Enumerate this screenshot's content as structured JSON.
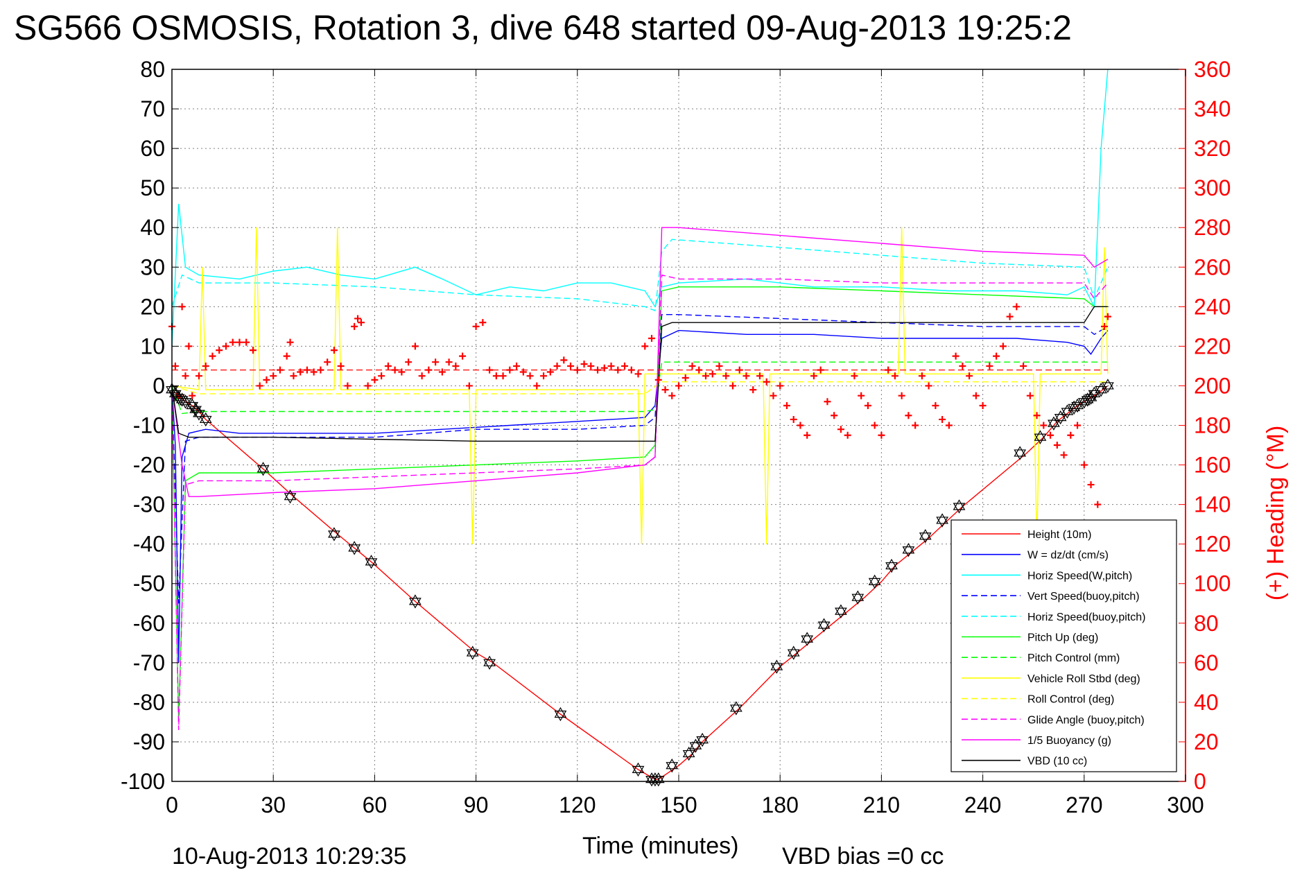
{
  "chart_data": {
    "type": "line",
    "title": "SG566 OSMOSIS, Rotation 3, dive 648 started 09-Aug-2013 19:25:2",
    "xlabel": "Time (minutes)",
    "ylabel_right": "(+) Heading (°M)",
    "footer_left": "10-Aug-2013 10:29:35",
    "footer_right": "VBD bias =0 cc",
    "xlim": [
      0,
      300
    ],
    "ylim": [
      -100,
      80
    ],
    "ylim_right": [
      0,
      360
    ],
    "x_ticks": [
      0,
      30,
      60,
      90,
      120,
      150,
      180,
      210,
      240,
      270,
      300
    ],
    "y_ticks": [
      -100,
      -90,
      -80,
      -70,
      -60,
      -50,
      -40,
      -30,
      -20,
      -10,
      0,
      10,
      20,
      30,
      40,
      50,
      60,
      70,
      80
    ],
    "y_ticks_right": [
      0,
      20,
      40,
      60,
      80,
      100,
      120,
      140,
      160,
      180,
      200,
      220,
      240,
      260,
      280,
      300,
      320,
      340,
      360
    ],
    "grid": true,
    "legend_position": "bottom-right",
    "series": [
      {
        "name": "Height (10m)",
        "color": "#ff0000",
        "style": "solid",
        "x": [
          0,
          2,
          4,
          6,
          8,
          10,
          27,
          36,
          49,
          54,
          59,
          72,
          90,
          95,
          115,
          138,
          143,
          144,
          150,
          154,
          157,
          168,
          180,
          185,
          190,
          195,
          200,
          205,
          210,
          214,
          219,
          224,
          229,
          234,
          253,
          258,
          262,
          265,
          268,
          271,
          274,
          277
        ],
        "y": [
          -1,
          -2.5,
          -4,
          -5,
          -6.5,
          -8.5,
          -21,
          -28,
          -37.5,
          -41,
          -44.5,
          -54.5,
          -67.5,
          -70,
          -83,
          -97,
          -99.5,
          -99.5,
          -96,
          -93,
          -90,
          -81.5,
          -71,
          -67.5,
          -64,
          -60.5,
          -57,
          -53.5,
          -49.5,
          -45.5,
          -42,
          -38.5,
          -34.5,
          -30.5,
          -17,
          -13,
          -9,
          -7,
          -5,
          -3.5,
          -2,
          0
        ]
      },
      {
        "name": "W = dz/dt (cm/s)",
        "color": "#0000ff",
        "style": "solid",
        "x": [
          0,
          1,
          2,
          3,
          5,
          10,
          20,
          40,
          60,
          80,
          100,
          120,
          140,
          143,
          145,
          150,
          170,
          190,
          210,
          230,
          250,
          265,
          270,
          272,
          275,
          277
        ],
        "y": [
          0,
          -15,
          -70,
          -18,
          -12,
          -11,
          -12,
          -12,
          -12,
          -11,
          -10,
          -9,
          -8,
          -5,
          12,
          14,
          13,
          13,
          12,
          12,
          12,
          11,
          10,
          8,
          12,
          14
        ]
      },
      {
        "name": "Horiz Speed(W,pitch)",
        "color": "#00ffff",
        "style": "solid",
        "x": [
          0,
          2,
          4,
          8,
          20,
          30,
          40,
          50,
          60,
          72,
          80,
          90,
          100,
          110,
          120,
          130,
          140,
          143,
          145,
          150,
          170,
          190,
          210,
          230,
          250,
          265,
          270,
          273,
          275,
          277
        ],
        "y": [
          10,
          46,
          30,
          28,
          27,
          29,
          30,
          28,
          27,
          30,
          27,
          23,
          25,
          24,
          26,
          26,
          24,
          20,
          25,
          26,
          27,
          25,
          25,
          24,
          24,
          23,
          25,
          20,
          60,
          80
        ]
      },
      {
        "name": "Vert Speed(buoy,pitch)",
        "color": "#0000ff",
        "style": "dashed",
        "x": [
          0,
          2,
          4,
          8,
          30,
          60,
          90,
          120,
          140,
          143,
          145,
          150,
          180,
          210,
          240,
          270,
          273,
          277
        ],
        "y": [
          0,
          -55,
          -14,
          -13,
          -13,
          -13,
          -11,
          -11,
          -10,
          -8,
          18,
          18,
          17,
          16,
          15,
          15,
          13,
          15
        ]
      },
      {
        "name": "Horiz Speed(buoy,pitch)",
        "color": "#00ffff",
        "style": "dashed",
        "x": [
          0,
          3,
          8,
          30,
          60,
          90,
          120,
          140,
          143,
          145,
          148,
          180,
          210,
          240,
          270,
          273,
          277
        ],
        "y": [
          20,
          28,
          26,
          26,
          25,
          23,
          22,
          20,
          19,
          34,
          37,
          35,
          33,
          31,
          30,
          22,
          30
        ]
      },
      {
        "name": "Pitch Up (deg)",
        "color": "#00ff00",
        "style": "solid",
        "x": [
          0,
          2,
          4,
          8,
          30,
          60,
          90,
          120,
          140,
          143,
          145,
          150,
          180,
          210,
          240,
          270,
          273,
          277
        ],
        "y": [
          0,
          -85,
          -24,
          -22,
          -22,
          -21,
          -20,
          -19,
          -18,
          -15,
          24,
          25,
          25,
          24,
          23,
          22,
          20,
          20
        ]
      },
      {
        "name": "Pitch Control (mm)",
        "color": "#00ff00",
        "style": "dashed",
        "x": [
          0,
          3,
          8,
          60,
          90,
          140,
          143,
          145,
          180,
          270,
          277
        ],
        "y": [
          0,
          -7,
          -6.5,
          -6.5,
          -6.5,
          -6.5,
          -6,
          6,
          6,
          6,
          6
        ]
      },
      {
        "name": "Vehicle Roll Stbd (deg)",
        "color": "#ffff00",
        "style": "solid",
        "x": [
          0,
          8,
          9,
          10,
          24,
          25,
          26,
          48,
          49,
          50,
          88,
          89,
          90,
          138,
          139,
          140,
          175,
          176,
          177,
          215,
          216,
          217,
          255,
          256,
          257,
          275,
          276,
          277
        ],
        "y": [
          0,
          -1,
          30,
          -1,
          -1,
          40,
          -1,
          -1,
          40,
          -1,
          -1,
          -40,
          -1,
          -1,
          -40,
          3,
          3,
          -40,
          3,
          3,
          40,
          3,
          3,
          -40,
          3,
          3,
          35,
          3
        ]
      },
      {
        "name": "Roll Control (deg)",
        "color": "#ffff00",
        "style": "dashed",
        "x": [
          0,
          8,
          60,
          140,
          145,
          200,
          277
        ],
        "y": [
          0,
          -2,
          -2,
          -2,
          1,
          1,
          1
        ]
      },
      {
        "name": "Glide Angle (buoy,pitch)",
        "color": "#ff00ff",
        "style": "dashed",
        "x": [
          0,
          2,
          4,
          8,
          30,
          60,
          90,
          120,
          140,
          143,
          145,
          150,
          180,
          210,
          240,
          270,
          273,
          277
        ],
        "y": [
          0,
          -87,
          -25,
          -24,
          -24,
          -23,
          -22,
          -21,
          -20,
          -18,
          28,
          27,
          27,
          26,
          26,
          26,
          22,
          26
        ]
      },
      {
        "name": "1/5 Buoyancy (g)",
        "color": "#ff00ff",
        "style": "solid",
        "x": [
          0,
          3,
          5,
          8,
          30,
          60,
          90,
          120,
          140,
          143,
          145,
          150,
          180,
          210,
          240,
          270,
          273,
          277
        ],
        "y": [
          0,
          -20,
          -28,
          -28,
          -27,
          -26,
          -24,
          -22,
          -20,
          -18,
          40,
          40,
          38,
          36,
          34,
          33,
          30,
          32
        ]
      },
      {
        "name": "VBD (10 cc)",
        "color": "#000000",
        "style": "solid",
        "x": [
          0,
          2,
          5,
          30,
          60,
          90,
          120,
          140,
          143,
          145,
          148,
          180,
          210,
          240,
          270,
          273,
          277
        ],
        "y": [
          0,
          -12,
          -13,
          -13,
          -13.5,
          -14,
          -14,
          -14,
          -14,
          15,
          16,
          16,
          16,
          16,
          16,
          20,
          20
        ]
      }
    ],
    "heading_series": {
      "name": "(+) Heading",
      "color": "#ff0000",
      "marker": "+",
      "x": [
        0,
        1,
        2,
        3,
        4,
        5,
        6,
        8,
        10,
        12,
        14,
        16,
        18,
        20,
        22,
        24,
        26,
        28,
        30,
        32,
        34,
        35,
        36,
        38,
        40,
        42,
        44,
        46,
        48,
        50,
        52,
        54,
        55,
        56,
        58,
        60,
        62,
        64,
        66,
        68,
        70,
        72,
        74,
        76,
        78,
        80,
        82,
        84,
        86,
        88,
        90,
        92,
        94,
        96,
        98,
        100,
        102,
        104,
        106,
        108,
        110,
        112,
        114,
        116,
        118,
        120,
        122,
        124,
        126,
        128,
        130,
        132,
        134,
        136,
        138,
        140,
        142,
        144,
        146,
        148,
        150,
        152,
        154,
        156,
        158,
        160,
        162,
        164,
        166,
        168,
        170,
        172,
        174,
        176,
        178,
        180,
        182,
        184,
        186,
        188,
        190,
        192,
        194,
        196,
        198,
        200,
        202,
        204,
        206,
        208,
        210,
        212,
        214,
        216,
        218,
        220,
        222,
        224,
        226,
        228,
        230,
        232,
        234,
        236,
        238,
        240,
        242,
        244,
        246,
        248,
        250,
        252,
        254,
        256,
        258,
        260,
        262,
        264,
        266,
        268,
        270,
        272,
        274,
        276,
        277
      ],
      "y": [
        230,
        210,
        195,
        240,
        205,
        220,
        195,
        205,
        210,
        215,
        218,
        220,
        222,
        222,
        222,
        218,
        200,
        203,
        205,
        208,
        215,
        222,
        205,
        207,
        208,
        207,
        208,
        212,
        218,
        210,
        200,
        230,
        234,
        232,
        200,
        203,
        205,
        210,
        208,
        207,
        212,
        220,
        205,
        208,
        212,
        207,
        212,
        210,
        215,
        200,
        230,
        232,
        208,
        205,
        205,
        208,
        210,
        207,
        205,
        200,
        205,
        207,
        210,
        213,
        210,
        208,
        211,
        210,
        208,
        209,
        210,
        208,
        210,
        208,
        206,
        220,
        224,
        203,
        198,
        195,
        200,
        204,
        210,
        208,
        205,
        206,
        210,
        205,
        200,
        208,
        205,
        198,
        205,
        202,
        195,
        200,
        190,
        183,
        180,
        175,
        205,
        208,
        192,
        185,
        178,
        175,
        205,
        195,
        190,
        180,
        175,
        208,
        205,
        195,
        185,
        180,
        205,
        200,
        190,
        183,
        180,
        215,
        210,
        205,
        195,
        190,
        210,
        215,
        220,
        235,
        240,
        210,
        195,
        185,
        180,
        175,
        170,
        165,
        175,
        180,
        160,
        150,
        140,
        230,
        235
      ]
    },
    "vbd_markers": {
      "marker": "hexagram",
      "color": "#000000",
      "x": [
        0,
        1,
        2,
        3,
        4,
        6,
        7,
        8,
        10,
        27,
        35,
        48,
        54,
        59,
        72,
        89,
        94,
        115,
        138,
        142,
        143,
        144,
        148,
        153,
        155,
        157,
        167,
        179,
        184,
        188,
        193,
        198,
        203,
        208,
        213,
        218,
        223,
        228,
        233,
        251,
        257,
        261,
        263,
        265,
        267,
        268,
        270,
        271,
        272,
        273,
        275,
        277
      ],
      "y": [
        -1,
        -2,
        -3,
        -3.5,
        -4,
        -5,
        -6,
        -7,
        -8.5,
        -21,
        -28,
        -37.5,
        -41,
        -44.5,
        -54.5,
        -67.5,
        -70,
        -83,
        -97,
        -99.5,
        -99.5,
        -99.5,
        -96,
        -93,
        -91,
        -89.5,
        -81.5,
        -71,
        -67.5,
        -64,
        -60.5,
        -57,
        -53.5,
        -49.5,
        -45.5,
        -41.5,
        -38,
        -34,
        -30.5,
        -17,
        -13,
        -9.5,
        -8,
        -6.5,
        -5.5,
        -5,
        -4,
        -3.5,
        -3,
        -2,
        -1,
        0
      ]
    },
    "heading_mean_line": {
      "color": "#ff0000",
      "style": "dashed",
      "y_right": 208
    }
  }
}
